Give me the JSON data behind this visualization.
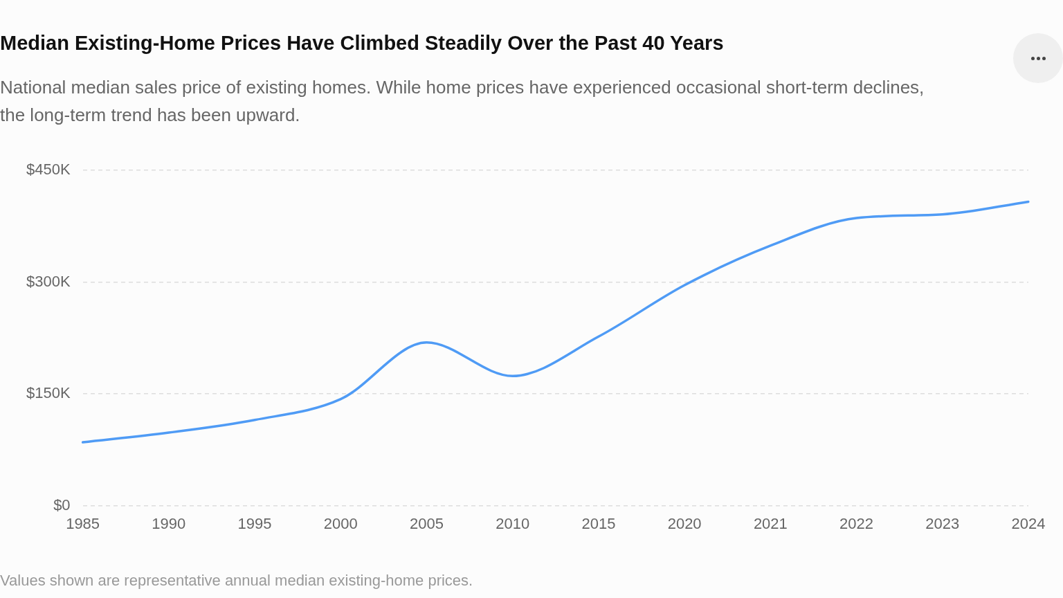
{
  "chart_data": {
    "type": "line",
    "title": "Median Existing-Home Prices Have Climbed Steadily Over the Past 40 Years",
    "subtitle": "National median sales price of existing homes. While home prices have experienced occasional short-term declines, the long-term trend has been upward.",
    "categories": [
      "1985",
      "1990",
      "1995",
      "2000",
      "2005",
      "2010",
      "2015",
      "2020",
      "2021",
      "2022",
      "2023",
      "2024"
    ],
    "series": [
      {
        "color": "#4f9bf5",
        "values": [
          85000,
          98000,
          115000,
          143000,
          219000,
          174000,
          227000,
          296000,
          349000,
          386000,
          391000,
          408000
        ]
      }
    ],
    "ylim": [
      0,
      450000
    ],
    "yticks": [
      {
        "value": 0,
        "label": "$0"
      },
      {
        "value": 150000,
        "label": "$150K"
      },
      {
        "value": 300000,
        "label": "$300K"
      },
      {
        "value": 450000,
        "label": "$450K"
      }
    ],
    "grid": "y",
    "legend": false,
    "marker": "none",
    "line_style": "solid",
    "annotations": [
      "Values shown are representative annual median existing-home prices."
    ]
  }
}
